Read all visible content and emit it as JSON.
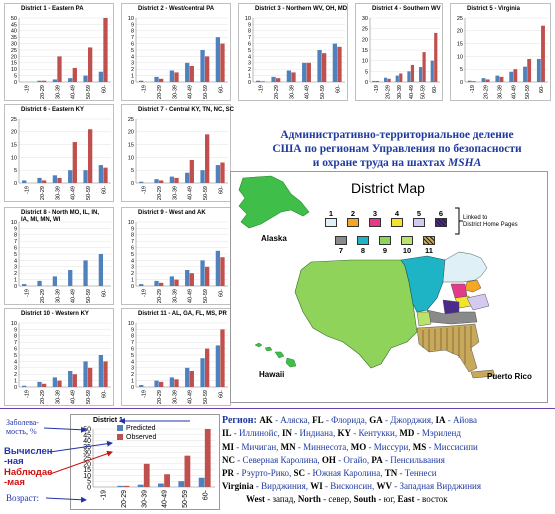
{
  "colors": {
    "predicted": "#4f81bd",
    "observed": "#c0504d",
    "heading": "#1f3aa0",
    "annot_blue": "#2233aa",
    "annot_red": "#cc1111"
  },
  "chart_data": [
    {
      "type": "bar",
      "title": "District 1 - Eastern PA",
      "categories": [
        "-19",
        "20-29",
        "30-39",
        "40-49",
        "50-59",
        "60-"
      ],
      "ylim": [
        0,
        50
      ],
      "yticks": [
        0,
        5,
        10,
        15,
        20,
        25,
        30,
        35,
        40,
        45,
        50
      ],
      "series": [
        {
          "name": "Predicted",
          "values": [
            0,
            1,
            2,
            3,
            5,
            8
          ]
        },
        {
          "name": "Observed",
          "values": [
            0,
            1,
            20,
            11,
            27,
            50
          ]
        }
      ]
    },
    {
      "type": "bar",
      "title": "District 2 - West/central PA",
      "categories": [
        "-19",
        "20-29",
        "30-39",
        "40-49",
        "50-59",
        "60-"
      ],
      "ylim": [
        0,
        10
      ],
      "yticks": [
        0,
        1,
        2,
        3,
        4,
        5,
        6,
        7,
        8,
        9,
        10
      ],
      "series": [
        {
          "name": "Predicted",
          "values": [
            0.2,
            0.8,
            1.8,
            3,
            5,
            7
          ]
        },
        {
          "name": "Observed",
          "values": [
            0,
            0.5,
            1.5,
            2.5,
            4,
            6
          ]
        }
      ]
    },
    {
      "type": "bar",
      "title": "District 3 - Northern WV, OH, MD",
      "categories": [
        "-19",
        "20-29",
        "30-39",
        "40-49",
        "50-59",
        "60-"
      ],
      "ylim": [
        0,
        10
      ],
      "yticks": [
        0,
        1,
        2,
        3,
        4,
        5,
        6,
        7,
        8,
        9,
        10
      ],
      "series": [
        {
          "name": "Predicted",
          "values": [
            0.2,
            0.8,
            1.8,
            3,
            5,
            6
          ]
        },
        {
          "name": "Observed",
          "values": [
            0.1,
            0.6,
            1.5,
            3,
            4.5,
            5.5
          ]
        }
      ]
    },
    {
      "type": "bar",
      "title": "District 4 - Southern WV",
      "categories": [
        "-19",
        "20-29",
        "30-39",
        "40-49",
        "50-59",
        "60-"
      ],
      "ylim": [
        0,
        30
      ],
      "yticks": [
        0,
        5,
        10,
        15,
        20,
        25,
        30
      ],
      "series": [
        {
          "name": "Predicted",
          "values": [
            0.5,
            2,
            3,
            5,
            7,
            10
          ]
        },
        {
          "name": "Observed",
          "values": [
            0.5,
            1.5,
            4,
            8,
            14,
            23
          ]
        }
      ]
    },
    {
      "type": "bar",
      "title": "District 5 - Virginia",
      "categories": [
        "-19",
        "20-29",
        "30-39",
        "40-49",
        "50-59",
        "60-"
      ],
      "ylim": [
        0,
        25
      ],
      "yticks": [
        0,
        5,
        10,
        15,
        20,
        25
      ],
      "series": [
        {
          "name": "Predicted",
          "values": [
            0.5,
            1.5,
            2.5,
            4,
            6,
            9
          ]
        },
        {
          "name": "Observed",
          "values": [
            0.3,
            1,
            2,
            5,
            9,
            22
          ]
        }
      ]
    },
    {
      "type": "bar",
      "title": "District 6 - Eastern KY",
      "categories": [
        "-19",
        "20-29",
        "30-39",
        "40-49",
        "50-59",
        "60-"
      ],
      "ylim": [
        0,
        25
      ],
      "yticks": [
        0,
        5,
        10,
        15,
        20,
        25
      ],
      "series": [
        {
          "name": "Predicted",
          "values": [
            1,
            2,
            3,
            5,
            5,
            7
          ]
        },
        {
          "name": "Observed",
          "values": [
            0,
            1,
            2,
            16,
            21,
            6
          ]
        }
      ]
    },
    {
      "type": "bar",
      "title": "District 7 - Central KY, TN, NC, SC",
      "categories": [
        "-19",
        "20-29",
        "30-39",
        "40-49",
        "50-59",
        "60-"
      ],
      "ylim": [
        0,
        25
      ],
      "yticks": [
        0,
        5,
        10,
        15,
        20,
        25
      ],
      "series": [
        {
          "name": "Predicted",
          "values": [
            0.5,
            1.5,
            2.5,
            4,
            5,
            7
          ]
        },
        {
          "name": "Observed",
          "values": [
            0,
            1,
            2,
            9,
            19,
            8
          ]
        }
      ]
    },
    {
      "type": "bar",
      "title": "District 8 - North MO, IL, IN, IA, MI, MN, WI",
      "categories": [
        "-19",
        "20-29",
        "30-39",
        "40-49",
        "50-59",
        "60-"
      ],
      "ylim": [
        0,
        10
      ],
      "yticks": [
        0,
        1,
        2,
        3,
        4,
        5,
        6,
        7,
        8,
        9,
        10
      ],
      "series": [
        {
          "name": "Predicted",
          "values": [
            0.3,
            0.8,
            1.5,
            2.5,
            4,
            5
          ]
        },
        {
          "name": "Observed",
          "values": [
            0,
            0,
            0,
            0,
            0,
            0
          ]
        }
      ]
    },
    {
      "type": "bar",
      "title": "District 9 - West and AK",
      "categories": [
        "-19",
        "20-29",
        "30-39",
        "40-49",
        "50-59",
        "60-"
      ],
      "ylim": [
        0,
        10
      ],
      "yticks": [
        0,
        1,
        2,
        3,
        4,
        5,
        6,
        7,
        8,
        9,
        10
      ],
      "series": [
        {
          "name": "Predicted",
          "values": [
            0.3,
            0.8,
            1.5,
            2.5,
            4,
            5.5
          ]
        },
        {
          "name": "Observed",
          "values": [
            0,
            0.5,
            1,
            2,
            3,
            4.5
          ]
        }
      ]
    },
    {
      "type": "bar",
      "title": "District 10 - Western KY",
      "categories": [
        "-19",
        "20-29",
        "30-39",
        "40-49",
        "50-59",
        "60-"
      ],
      "ylim": [
        0,
        10
      ],
      "yticks": [
        0,
        1,
        2,
        3,
        4,
        5,
        6,
        7,
        8,
        9,
        10
      ],
      "series": [
        {
          "name": "Predicted",
          "values": [
            0.2,
            0.8,
            1.5,
            2.5,
            4,
            5
          ]
        },
        {
          "name": "Observed",
          "values": [
            0,
            0.5,
            1,
            2,
            3,
            4
          ]
        }
      ]
    },
    {
      "type": "bar",
      "title": "District 11 - AL, GA, FL, MS, PR",
      "categories": [
        "-19",
        "20-29",
        "30-39",
        "40-49",
        "50-59",
        "60-"
      ],
      "ylim": [
        0,
        10
      ],
      "yticks": [
        0,
        1,
        2,
        3,
        4,
        5,
        6,
        7,
        8,
        9,
        10
      ],
      "series": [
        {
          "name": "Predicted",
          "values": [
            0.3,
            1,
            1.5,
            3,
            4.5,
            6.5
          ]
        },
        {
          "name": "Observed",
          "values": [
            0,
            0.8,
            1.2,
            2.5,
            6,
            9
          ]
        }
      ]
    },
    {
      "type": "bar",
      "title": "District 1",
      "categories": [
        "-19",
        "20-29",
        "30-39",
        "40-49",
        "50-59",
        "60-"
      ],
      "ylim": [
        0,
        50
      ],
      "yticks": [
        0,
        5,
        10,
        15,
        20,
        25,
        30,
        35,
        40,
        45,
        50
      ],
      "legend": "top-left",
      "series": [
        {
          "name": "Predicted",
          "values": [
            0,
            1,
            2,
            3,
            5,
            8
          ]
        },
        {
          "name": "Observed",
          "values": [
            0,
            1,
            20,
            11,
            27,
            50
          ]
        }
      ]
    }
  ],
  "heading": {
    "line1": "Административно-территориальное деление",
    "line2": "США по регионам Управления по безопасности",
    "line3_prefix": "и охране труда на шахтах ",
    "line3_em": "MSHA"
  },
  "map": {
    "title": "District Map",
    "linked": [
      "Linked to",
      "District Home Pages"
    ],
    "labels": {
      "alaska": "Alaska",
      "hawaii": "Hawaii",
      "pr": "Puerto Rico"
    },
    "keys": [
      {
        "n": "1",
        "c": "#dff1f7"
      },
      {
        "n": "2",
        "c": "#f5a623"
      },
      {
        "n": "3",
        "c": "#e43a8a"
      },
      {
        "n": "4",
        "c": "#f3e32a"
      },
      {
        "n": "5",
        "c": "#d6c9ef"
      },
      {
        "n": "6",
        "c": "#4a2a8a"
      },
      {
        "n": "7",
        "c": "#8a8a8a"
      },
      {
        "n": "8",
        "c": "#1fb3c6"
      },
      {
        "n": "9",
        "c": "#8fd35a"
      },
      {
        "n": "10",
        "c": "#b9e36a"
      },
      {
        "n": "11",
        "c": "#c8a85a"
      }
    ]
  },
  "annotations": {
    "zabolev1": "Заболева-",
    "zabolev2": "мость, %",
    "calc1": "Вычислен",
    "calc2": "-ная",
    "obs1": "Наблюдае",
    "obs2": "-мая",
    "age": "Возраст:"
  },
  "regions": {
    "header": "Регион:",
    "rows": [
      [
        [
          "AK",
          "Аляска"
        ],
        [
          "FL",
          "Флорида"
        ],
        [
          "GA",
          "Джорджия"
        ],
        [
          "IA",
          "Айова"
        ]
      ],
      [
        [
          "IL",
          "Иллинойс"
        ],
        [
          "IN",
          "Индиана"
        ],
        [
          "KY",
          "Кентукки"
        ],
        [
          "MD",
          "Мэриленд"
        ]
      ],
      [
        [
          "MI",
          "Мичиган"
        ],
        [
          "MN",
          "Миннесота"
        ],
        [
          "MO",
          "Миссури"
        ],
        [
          "MS",
          "Миссисипи"
        ]
      ],
      [
        [
          "NC",
          "Северная Каролина"
        ],
        [
          "OH",
          "Огайо"
        ],
        [
          "PA",
          "Пенсильвания"
        ]
      ],
      [
        [
          "PR",
          "Рэурто-Рико"
        ],
        [
          "SC",
          "Южная Каролина"
        ],
        [
          "TN",
          "Теннеси"
        ]
      ],
      [
        [
          "Virginia",
          "Вирджиния"
        ],
        [
          "WI",
          "Висконсин"
        ],
        [
          "WV",
          "Западная Вирджиния"
        ]
      ]
    ],
    "directions": [
      [
        "West",
        "запад"
      ],
      [
        "North",
        "север"
      ],
      [
        "South",
        "юг"
      ],
      [
        "East",
        "восток"
      ]
    ]
  }
}
